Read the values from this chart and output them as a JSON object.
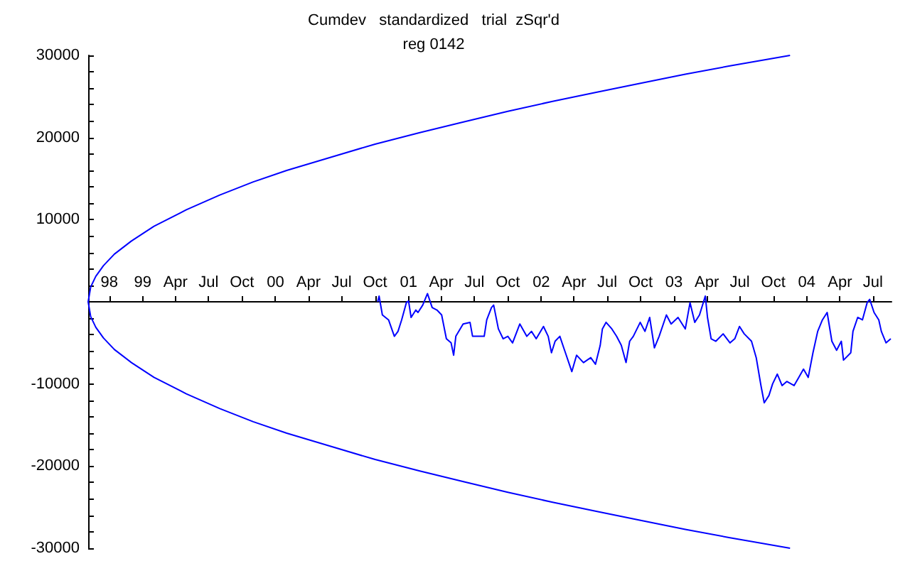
{
  "chart_data": {
    "type": "line",
    "title": "Cumdev   standardized   trial  zSqr'd",
    "subtitle": "reg 0142",
    "marker": "none",
    "line_style": "solid",
    "xlim": [
      "1998-08-04",
      "2004-08-21"
    ],
    "xticks": [
      {
        "value": "1998-10-01",
        "label": "98"
      },
      {
        "value": "1999-01-01",
        "label": "99"
      },
      {
        "value": "1999-04-01",
        "label": "Apr"
      },
      {
        "value": "1999-07-01",
        "label": "Jul"
      },
      {
        "value": "1999-10-01",
        "label": "Oct"
      },
      {
        "value": "2000-01-01",
        "label": "00"
      },
      {
        "value": "2000-04-01",
        "label": "Apr"
      },
      {
        "value": "2000-07-01",
        "label": "Jul"
      },
      {
        "value": "2000-10-01",
        "label": "Oct"
      },
      {
        "value": "2001-01-01",
        "label": "01"
      },
      {
        "value": "2001-04-01",
        "label": "Apr"
      },
      {
        "value": "2001-07-01",
        "label": "Jul"
      },
      {
        "value": "2001-10-01",
        "label": "Oct"
      },
      {
        "value": "2002-01-01",
        "label": "02"
      },
      {
        "value": "2002-04-01",
        "label": "Apr"
      },
      {
        "value": "2002-07-01",
        "label": "Jul"
      },
      {
        "value": "2002-10-01",
        "label": "Oct"
      },
      {
        "value": "2003-01-01",
        "label": "03"
      },
      {
        "value": "2003-04-01",
        "label": "Apr"
      },
      {
        "value": "2003-07-01",
        "label": "Jul"
      },
      {
        "value": "2003-10-01",
        "label": "Oct"
      },
      {
        "value": "2004-01-01",
        "label": "04"
      },
      {
        "value": "2004-04-01",
        "label": "Apr"
      },
      {
        "value": "2004-07-01",
        "label": "Jul"
      }
    ],
    "ylim": [
      -30000,
      30000
    ],
    "yticks": [
      -30000,
      {
        "value": -28000,
        "label": null
      },
      {
        "value": -26000,
        "label": null
      },
      {
        "value": -24000,
        "label": null
      },
      {
        "value": -22000,
        "label": null
      },
      -20000,
      {
        "value": -18000,
        "label": null
      },
      {
        "value": -16000,
        "label": null
      },
      {
        "value": -14000,
        "label": null
      },
      {
        "value": -12000,
        "label": null
      },
      -10000,
      {
        "value": -8000,
        "label": null
      },
      {
        "value": -6000,
        "label": null
      },
      {
        "value": -4000,
        "label": null
      },
      {
        "value": -2000,
        "label": null
      },
      {
        "value": 0,
        "label": null
      },
      {
        "value": 2000,
        "label": null
      },
      {
        "value": 4000,
        "label": null
      },
      {
        "value": 6000,
        "label": null
      },
      {
        "value": 8000,
        "label": null
      },
      10000,
      {
        "value": 12000,
        "label": null
      },
      {
        "value": 14000,
        "label": null
      },
      {
        "value": 16000,
        "label": null
      },
      {
        "value": 18000,
        "label": null
      },
      20000,
      {
        "value": 22000,
        "label": null
      },
      {
        "value": 24000,
        "label": null
      },
      {
        "value": 26000,
        "label": null
      },
      {
        "value": 28000,
        "label": null
      },
      30000
    ],
    "series": [
      {
        "color": "#0000ff",
        "x": [
          "2003-11-16",
          "2003-06-01",
          "2003-02-01",
          "2002-10-01",
          "2002-06-01",
          "2002-02-01",
          "2001-10-01",
          "2001-06-01",
          "2001-02-01",
          "2000-10-01",
          "2000-06-01",
          "2000-02-01",
          "1999-11-01",
          "1999-08-01",
          "1999-05-01",
          "1999-02-01",
          "1998-12-01",
          "1998-10-15",
          "1998-09-15",
          "1998-08-25",
          "1998-08-11",
          "1998-08-04",
          "1998-08-11",
          "1998-08-25",
          "1998-09-15",
          "1998-10-15",
          "1998-12-01",
          "1999-02-01",
          "1999-05-01",
          "1999-08-01",
          "1999-11-01",
          "2000-02-01",
          "2000-06-01",
          "2000-10-01",
          "2001-02-01",
          "2001-06-01",
          "2001-10-01",
          "2002-02-01",
          "2002-06-01",
          "2002-10-01",
          "2003-02-01",
          "2003-06-01",
          "2003-11-16"
        ],
        "values": [
          30000,
          28700,
          27700,
          26600,
          25500,
          24400,
          23200,
          21900,
          20600,
          19200,
          17600,
          16000,
          14600,
          13000,
          11200,
          9200,
          7400,
          5800,
          4400,
          3100,
          1800,
          0,
          -1800,
          -3100,
          -4400,
          -5800,
          -7400,
          -9200,
          -11200,
          -13000,
          -14600,
          -16000,
          -17600,
          -19200,
          -20600,
          -21900,
          -23200,
          -24400,
          -25500,
          -26600,
          -27700,
          -28700,
          -30000
        ]
      },
      {
        "color": "#0000ff",
        "x": [
          "2000-10-08",
          "2000-10-12",
          "2000-10-21",
          "2000-11-07",
          "2000-11-23",
          "2000-12-03",
          "2000-12-13",
          "2000-12-26",
          "2001-01-01",
          "2001-01-08",
          "2001-01-21",
          "2001-01-27",
          "2001-02-09",
          "2001-02-22",
          "2001-03-07",
          "2001-03-20",
          "2001-04-02",
          "2001-04-15",
          "2001-04-28",
          "2001-05-05",
          "2001-05-11",
          "2001-05-31",
          "2001-06-19",
          "2001-06-26",
          "2001-07-28",
          "2001-08-04",
          "2001-08-17",
          "2001-08-23",
          "2001-09-05",
          "2001-09-18",
          "2001-10-01",
          "2001-10-14",
          "2001-11-03",
          "2001-11-22",
          "2001-12-05",
          "2001-12-18",
          "2002-01-07",
          "2002-01-20",
          "2002-01-29",
          "2002-02-08",
          "2002-02-21",
          "2002-03-06",
          "2002-03-26",
          "2002-04-08",
          "2002-04-27",
          "2002-05-17",
          "2002-05-30",
          "2002-06-12",
          "2002-06-18",
          "2002-06-28",
          "2002-07-14",
          "2002-07-27",
          "2002-08-09",
          "2002-08-22",
          "2002-09-01",
          "2002-09-11",
          "2002-09-30",
          "2002-10-13",
          "2002-10-26",
          "2002-11-08",
          "2002-11-21",
          "2002-12-11",
          "2002-12-24",
          "2003-01-12",
          "2003-02-01",
          "2003-02-14",
          "2003-02-27",
          "2003-03-12",
          "2003-03-28",
          "2003-04-03",
          "2003-04-13",
          "2003-04-26",
          "2003-05-16",
          "2003-06-04",
          "2003-06-17",
          "2003-06-30",
          "2003-07-13",
          "2003-08-02",
          "2003-08-15",
          "2003-08-28",
          "2003-09-06",
          "2003-09-19",
          "2003-09-29",
          "2003-10-12",
          "2003-10-25",
          "2003-11-07",
          "2003-11-27",
          "2003-12-10",
          "2003-12-23",
          "2004-01-05",
          "2004-01-18",
          "2004-01-31",
          "2004-02-13",
          "2004-02-26",
          "2004-03-10",
          "2004-03-23",
          "2004-04-05",
          "2004-04-11",
          "2004-05-01",
          "2004-05-07",
          "2004-05-20",
          "2004-06-02",
          "2004-06-15",
          "2004-06-22",
          "2004-07-04",
          "2004-07-17",
          "2004-07-24",
          "2004-08-06",
          "2004-08-19"
        ],
        "values": [
          0,
          700,
          -1600,
          -2200,
          -4200,
          -3600,
          -2200,
          -100,
          100,
          -1900,
          -1000,
          -1300,
          -400,
          1000,
          -700,
          -1000,
          -1600,
          -4500,
          -5000,
          -6500,
          -4200,
          -2700,
          -2500,
          -4200,
          -4200,
          -2200,
          -700,
          -400,
          -3300,
          -4500,
          -4200,
          -5000,
          -2700,
          -4200,
          -3600,
          -4500,
          -3000,
          -4200,
          -6200,
          -4800,
          -4200,
          -5900,
          -8500,
          -6500,
          -7400,
          -6800,
          -7600,
          -5300,
          -3300,
          -2500,
          -3300,
          -4200,
          -5300,
          -7400,
          -4800,
          -4200,
          -2500,
          -3600,
          -1900,
          -5600,
          -4200,
          -1600,
          -2700,
          -1900,
          -3300,
          -100,
          -2500,
          -1600,
          700,
          -1900,
          -4500,
          -4800,
          -3900,
          -5000,
          -4500,
          -3000,
          -3900,
          -4800,
          -6800,
          -10200,
          -12300,
          -11400,
          -10000,
          -8800,
          -10200,
          -9700,
          -10200,
          -9200,
          -8200,
          -9200,
          -6200,
          -3600,
          -2200,
          -1300,
          -4800,
          -5900,
          -4800,
          -7100,
          -6200,
          -3600,
          -1900,
          -2200,
          -100,
          300,
          -1300,
          -2200,
          -3600,
          -5000,
          -4500
        ]
      }
    ]
  }
}
